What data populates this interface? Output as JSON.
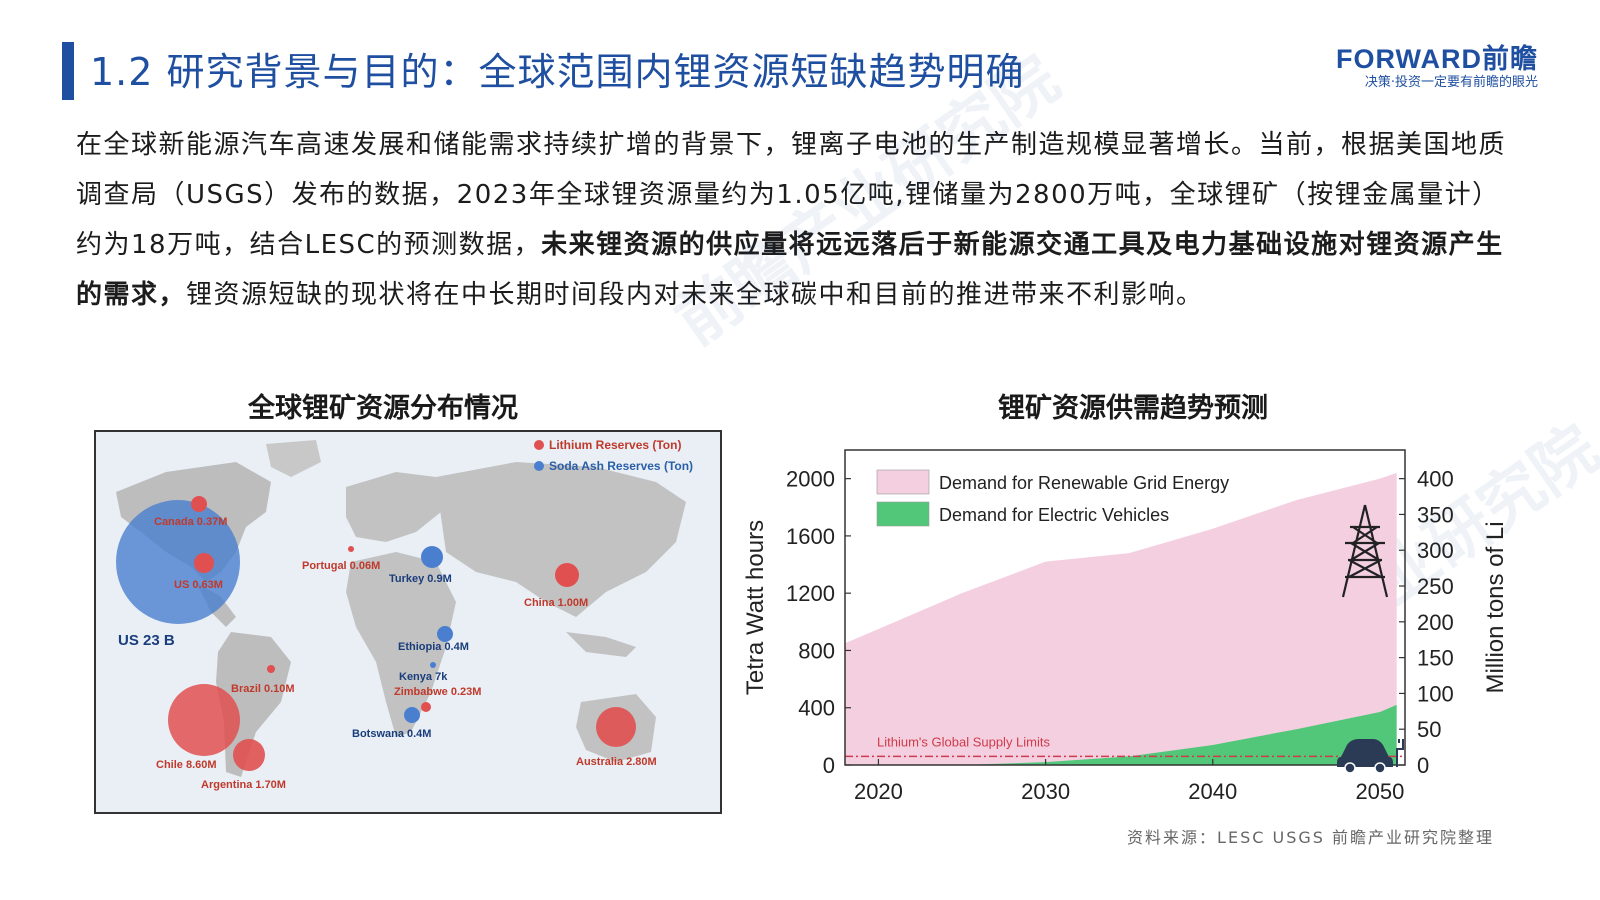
{
  "header": {
    "title": "1.2 研究背景与目的：全球范围内锂资源短缺趋势明确",
    "logo_main": "FORWARD前瞻",
    "logo_sub": "决策·投资一定要有前瞻的眼光"
  },
  "body": {
    "part1": "在全球新能源汽车高速发展和储能需求持续扩增的背景下，锂离子电池的生产制造规模显著增长。当前，根据美国地质调查局（USGS）发布的数据，2023年全球锂资源量约为1.05亿吨,锂储量为2800万吨，全球锂矿（按锂金属量计）约为18万吨，结合LESC的预测数据，",
    "bold": "未来锂资源的供应量将远远落后于新能源交通工具及电力基础设施对锂资源产生的需求，",
    "part2": "锂资源短缺的现状将在中长期时间段内对未来全球碳中和目前的推进带来不利影响。"
  },
  "map": {
    "title": "全球锂矿资源分布情况",
    "legend": [
      {
        "label": "Lithium Reserves (Ton)",
        "color": "#e05050"
      },
      {
        "label": "Soda Ash Reserves (Ton)",
        "color": "#4a7fd0"
      }
    ],
    "big_label": "US 23 B",
    "points": [
      {
        "label": "Canada  0.37M",
        "type": "lithium"
      },
      {
        "label": "US  0.63M",
        "type": "lithium"
      },
      {
        "label": "Portugal  0.06M",
        "type": "lithium"
      },
      {
        "label": "Turkey  0.9M",
        "type": "soda"
      },
      {
        "label": "China  1.00M",
        "type": "lithium"
      },
      {
        "label": "Ethiopia  0.4M",
        "type": "soda"
      },
      {
        "label": "Kenya  7k",
        "type": "soda"
      },
      {
        "label": "Zimbabwe  0.23M",
        "type": "lithium"
      },
      {
        "label": "Botswana  0.4M",
        "type": "soda"
      },
      {
        "label": "Brazil  0.10M",
        "type": "lithium"
      },
      {
        "label": "Chile  8.60M",
        "type": "lithium"
      },
      {
        "label": "Argentina  1.70M",
        "type": "lithium"
      },
      {
        "label": "Australia  2.80M",
        "type": "lithium"
      }
    ]
  },
  "chart_data": {
    "type": "area",
    "title": "锂矿资源供需趋势预测",
    "ylabel": "Tetra Watt hours",
    "y2label": "Million tons of Li",
    "x": [
      2018,
      2020,
      2025,
      2030,
      2035,
      2040,
      2045,
      2050,
      2051
    ],
    "xticks": [
      "2020",
      "2030",
      "2040",
      "2050"
    ],
    "xtick_values": [
      2020,
      2030,
      2040,
      2050
    ],
    "xlim": [
      2018,
      2051.5
    ],
    "ylim": [
      0,
      2200
    ],
    "yticks": [
      "0",
      "400",
      "800",
      "1200",
      "1600",
      "2000"
    ],
    "ytick_values": [
      0,
      400,
      800,
      1200,
      1600,
      2000
    ],
    "y2ticks": [
      "0",
      "50",
      "100",
      "150",
      "200",
      "250",
      "300",
      "350",
      "400"
    ],
    "y2tick_values": [
      0,
      50,
      100,
      150,
      200,
      250,
      300,
      350,
      400
    ],
    "y2lim": [
      0,
      440
    ],
    "series": [
      {
        "name": "Demand for Renewable Grid Energy",
        "color": "#f4cfe0",
        "values": [
          850,
          950,
          1200,
          1420,
          1480,
          1650,
          1850,
          2000,
          2040
        ]
      },
      {
        "name": "Demand for Electric Vehicles",
        "color": "#52c77a",
        "values": [
          0,
          0,
          0,
          20,
          60,
          140,
          250,
          370,
          420
        ]
      }
    ],
    "supply_limit": {
      "label": "Lithium's Global Supply Limits",
      "value": 60,
      "color": "#d03a4a"
    },
    "legend_position": "top-left",
    "grid": false
  },
  "source": "资料来源：LESC USGS 前瞻产业研究院整理",
  "watermark": "前瞻产业研究院"
}
